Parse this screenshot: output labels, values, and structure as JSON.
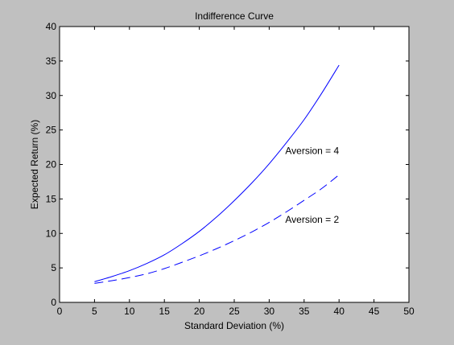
{
  "colors": {
    "figure_background": "#c0c0c0",
    "axes_background": "#ffffff",
    "axes_color": "#000000",
    "line_color": "#0000ff"
  },
  "chart_data": {
    "type": "line",
    "title": "Indifference Curve",
    "xlabel": "Standard Deviation (%)",
    "ylabel": "Expected Return (%)",
    "xlim": [
      0,
      50
    ],
    "ylim": [
      0,
      40
    ],
    "xticks": [
      0,
      5,
      10,
      15,
      20,
      25,
      30,
      35,
      40,
      45,
      50
    ],
    "yticks": [
      0,
      5,
      10,
      15,
      20,
      25,
      30,
      35,
      40
    ],
    "grid": false,
    "legend": "none",
    "series": [
      {
        "style": "solid",
        "x": [
          5,
          7.5,
          10,
          12.5,
          15,
          17.5,
          20,
          22.5,
          25,
          27.5,
          30,
          32.5,
          35,
          37.5,
          40
        ],
        "y": [
          3.0,
          3.75,
          4.6,
          5.65,
          6.9,
          8.5,
          10.3,
          12.4,
          14.75,
          17.3,
          20.1,
          23.2,
          26.5,
          30.3,
          34.4
        ]
      },
      {
        "style": "dashed",
        "x": [
          5,
          7.5,
          10,
          12.5,
          15,
          17.5,
          20,
          22.5,
          25,
          27.5,
          30,
          32.5,
          35,
          37.5,
          40
        ],
        "y": [
          2.75,
          3.15,
          3.6,
          4.15,
          4.9,
          5.8,
          6.75,
          7.8,
          8.95,
          10.2,
          11.6,
          13.15,
          14.8,
          16.5,
          18.5
        ]
      }
    ],
    "annotations": [
      {
        "text": "Aversion = 4",
        "x": 32.3,
        "y": 22.0
      },
      {
        "text": "Aversion = 2",
        "x": 32.3,
        "y": 12.0
      }
    ]
  }
}
